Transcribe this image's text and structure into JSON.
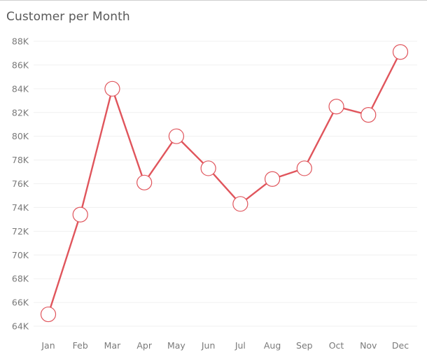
{
  "chart_data": {
    "type": "line",
    "title": "Customer per Month",
    "xlabel": "",
    "ylabel": "",
    "categories": [
      "Jan",
      "Feb",
      "Mar",
      "Apr",
      "May",
      "Jun",
      "Jul",
      "Aug",
      "Sep",
      "Oct",
      "Nov",
      "Dec"
    ],
    "series": [
      {
        "values": [
          65000,
          73400,
          84000,
          76100,
          80000,
          77300,
          74300,
          76400,
          77300,
          82500,
          81800,
          87100
        ]
      }
    ],
    "yticks": [
      "64K",
      "66K",
      "68K",
      "70K",
      "72K",
      "74K",
      "76K",
      "78K",
      "80K",
      "82K",
      "84K",
      "86K",
      "88K"
    ],
    "ytick_values": [
      64000,
      66000,
      68000,
      70000,
      72000,
      74000,
      76000,
      78000,
      80000,
      82000,
      84000,
      86000,
      88000
    ],
    "ylim": [
      64000,
      88000
    ],
    "grid": true,
    "legend": "none",
    "colors": {
      "line": "#e0555c",
      "marker_fill": "#ffffff",
      "marker_stroke": "#e0555c",
      "grid": "#f0f0f0",
      "tick_text": "#7a7a7a",
      "title_text": "#595959"
    }
  }
}
